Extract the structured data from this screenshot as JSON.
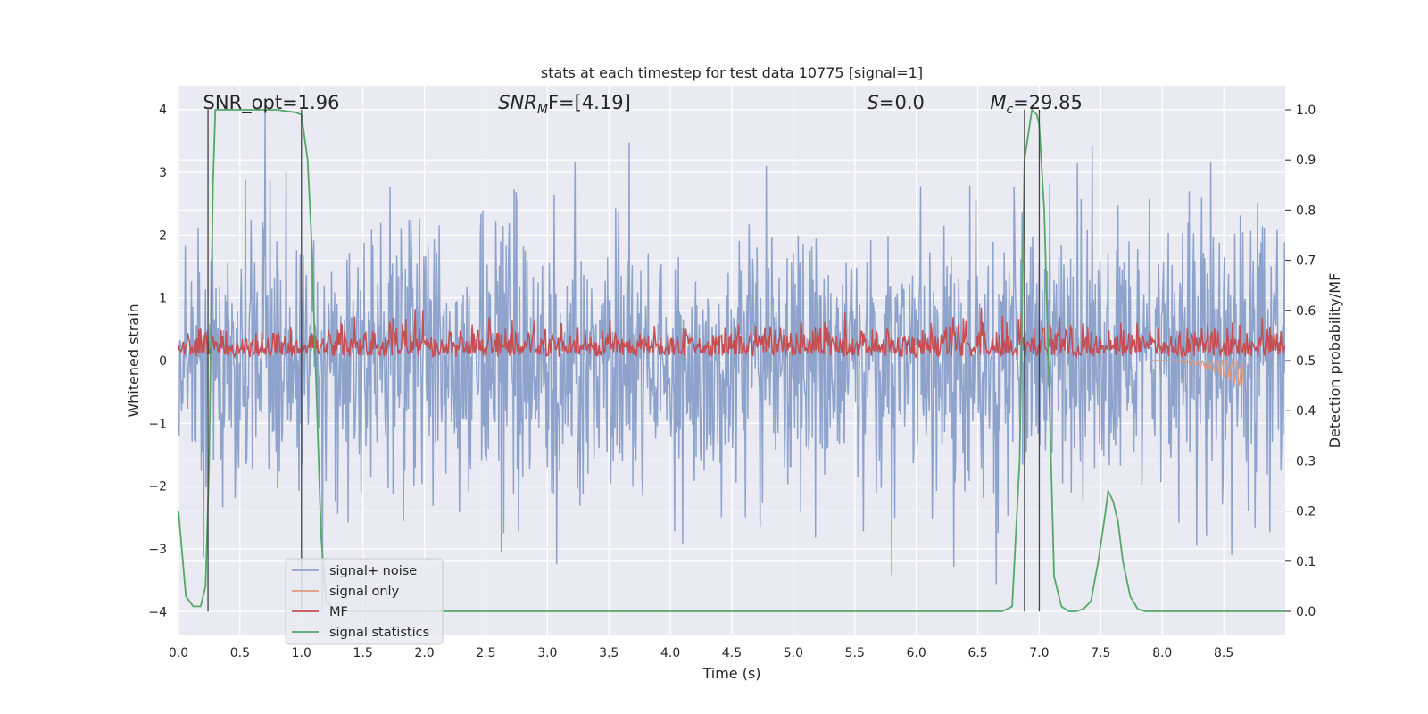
{
  "chart_data": {
    "type": "line",
    "title": "stats at each timestep for test data 10775 [signal=1]",
    "xlabel": "Time (s)",
    "ylabel": "Whitened strain",
    "y2label": "Detection probability/MF",
    "xlim": [
      0.0,
      9.0
    ],
    "ylim": [
      -4.38,
      4.38
    ],
    "y2lim": [
      -0.048,
      1.048
    ],
    "grid": true,
    "x_ticks": [
      "0.0",
      "0.5",
      "1.0",
      "1.5",
      "2.0",
      "2.5",
      "3.0",
      "3.5",
      "4.0",
      "4.5",
      "5.0",
      "5.5",
      "6.0",
      "6.5",
      "7.0",
      "7.5",
      "8.0",
      "8.5"
    ],
    "y_ticks": [
      "4",
      "3",
      "2",
      "1",
      "0",
      "−1",
      "−2",
      "−3",
      "−4"
    ],
    "y2_ticks": [
      "1.0",
      "0.9",
      "0.8",
      "0.7",
      "0.6",
      "0.5",
      "0.4",
      "0.3",
      "0.2",
      "0.1",
      "0.0"
    ],
    "annotations": [
      {
        "x": 0.2,
        "text": "SNR_opt=1.96"
      },
      {
        "x": 2.6,
        "base": "SNR",
        "sub": "M",
        "rest": "F=[4.19]"
      },
      {
        "x": 5.6,
        "base": "S",
        "rest": "=0.0"
      },
      {
        "x": 6.6,
        "base": "M",
        "sub": "c",
        "rest": "=29.85"
      }
    ],
    "vlines": [
      0.24,
      1.0,
      6.88,
      7.0
    ],
    "legend": {
      "position": "lower-left",
      "entries": [
        "signal+ noise",
        "signal only",
        "MF",
        "signal statistics"
      ]
    },
    "series": [
      {
        "name": "signal+ noise",
        "color": "#8ea3cc",
        "axis": "left",
        "kind": "dense",
        "amplitude_sd": 1.0,
        "range": [
          -4.0,
          4.0
        ]
      },
      {
        "name": "signal only",
        "color": "#dd9a80",
        "axis": "left",
        "kind": "chirp",
        "x_start": 7.9,
        "x_end": 8.66,
        "min": -0.45
      },
      {
        "name": "MF",
        "color": "#c44e52",
        "axis": "left",
        "kind": "dense",
        "baseline": 0.05,
        "range": [
          0.0,
          1.0
        ]
      },
      {
        "name": "signal statistics",
        "color": "#55a868",
        "axis": "right",
        "x": [
          0.0,
          0.06,
          0.12,
          0.18,
          0.22,
          0.25,
          0.28,
          0.3,
          0.4,
          0.6,
          0.8,
          0.95,
          1.0,
          1.05,
          1.08,
          1.12,
          1.16,
          1.2,
          1.3,
          6.7,
          6.78,
          6.84,
          6.88,
          6.94,
          6.98,
          7.0,
          7.04,
          7.08,
          7.12,
          7.18,
          7.24,
          7.3,
          7.36,
          7.42,
          7.48,
          7.54,
          7.56,
          7.6,
          7.64,
          7.68,
          7.74,
          7.8,
          7.86,
          7.94,
          8.5,
          9.0
        ],
        "y": [
          0.2,
          0.03,
          0.01,
          0.01,
          0.05,
          0.3,
          0.85,
          1.0,
          1.0,
          1.0,
          1.0,
          0.995,
          0.99,
          0.9,
          0.75,
          0.45,
          0.15,
          0.02,
          0.0,
          0.0,
          0.01,
          0.3,
          0.9,
          1.0,
          0.99,
          0.97,
          0.8,
          0.45,
          0.07,
          0.01,
          0.0,
          0.0,
          0.005,
          0.02,
          0.1,
          0.2,
          0.24,
          0.22,
          0.18,
          0.1,
          0.03,
          0.005,
          0.0,
          0.0,
          0.0,
          0.0
        ]
      }
    ]
  }
}
